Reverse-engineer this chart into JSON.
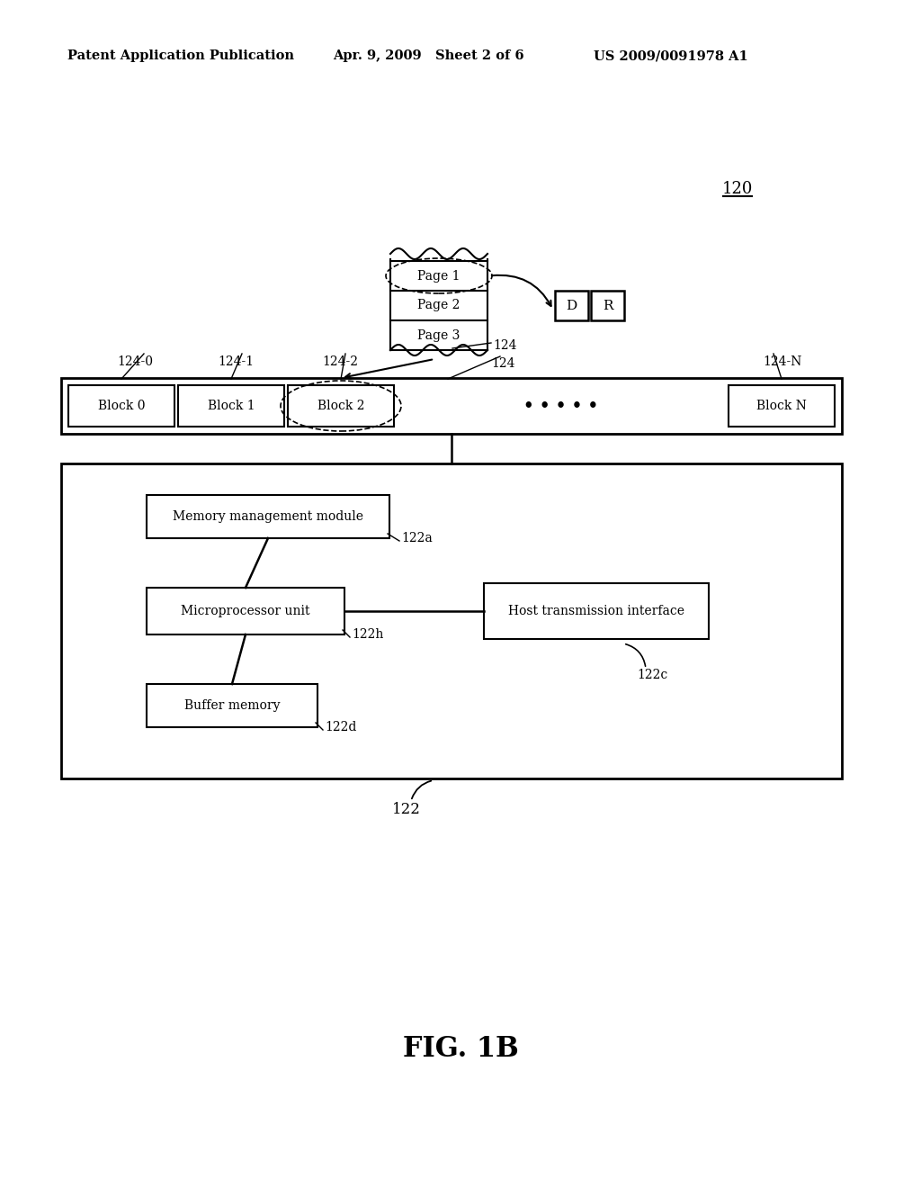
{
  "bg_color": "#ffffff",
  "header_left": "Patent Application Publication",
  "header_mid": "Apr. 9, 2009   Sheet 2 of 6",
  "header_right": "US 2009/0091978 A1",
  "fig_label": "FIG. 1B",
  "label_120": "120",
  "label_122": "122",
  "label_122a": "122a",
  "label_122h": "122h",
  "label_122c": "122c",
  "label_122d": "122d",
  "label_124": "124",
  "label_124_0": "124-0",
  "label_124_1": "124-1",
  "label_124_2": "124-2",
  "label_124_N": "124-N",
  "block0": "Block 0",
  "block1": "Block 1",
  "block2": "Block 2",
  "dots": "• • • • •",
  "blockN": "Block N",
  "page1": "Page 1",
  "page2": "Page 2",
  "page3": "Page 3",
  "D_label": "D",
  "R_label": "R",
  "mmm": "Memory management module",
  "mpu": "Microprocessor unit",
  "hti": "Host transmission interface",
  "bm": "Buffer memory"
}
